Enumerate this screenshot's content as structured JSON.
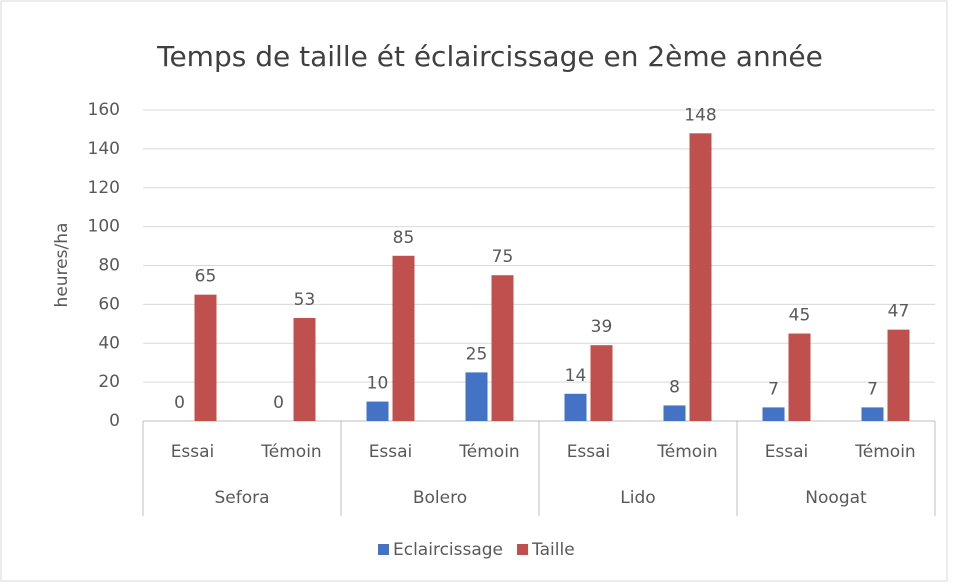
{
  "chart_data": {
    "type": "bar",
    "title": "Temps de taille ét éclaircissage en 2ème année",
    "y_label": "heures/ha",
    "categories": [
      "Essai",
      "Témoin",
      "Essai",
      "Témoin",
      "Essai",
      "Témoin",
      "Essai",
      "Témoin"
    ],
    "groups": [
      "Sefora",
      "Bolero",
      "Lido",
      "Noogat"
    ],
    "series": [
      {
        "name": "Eclaircissage",
        "color": "#4472c4",
        "values": [
          0,
          0,
          10,
          25,
          14,
          8,
          7,
          7
        ]
      },
      {
        "name": "Taille",
        "color": "#c0504d",
        "values": [
          65,
          53,
          85,
          75,
          39,
          148,
          45,
          47
        ]
      }
    ],
    "ylim": [
      0,
      160
    ],
    "yticks": [
      0,
      20,
      40,
      60,
      80,
      100,
      120,
      140,
      160
    ],
    "grid": true,
    "legend": "bottom"
  }
}
